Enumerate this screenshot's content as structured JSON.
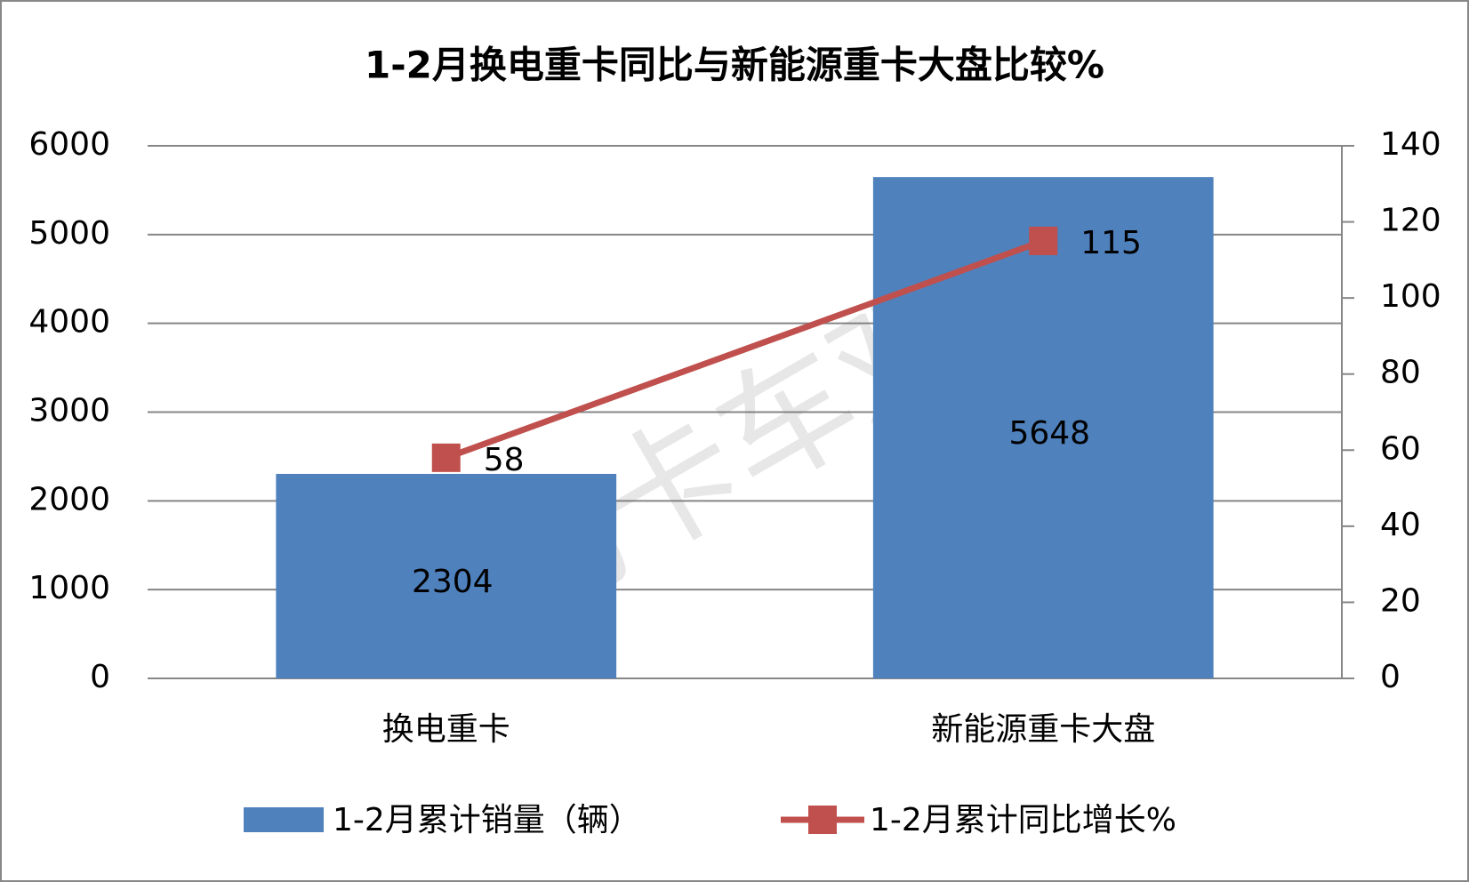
{
  "chart_data": {
    "type": "combo",
    "title": "1-2月换电重卡同比与新能源重卡大盘比较%",
    "watermark": "电动卡车观察",
    "categories": [
      "换电重卡",
      "新能源重卡大盘"
    ],
    "series": [
      {
        "name": "1-2月累计销量（辆）",
        "color": "#4f81bd",
        "values": [
          2304,
          5648
        ]
      },
      {
        "name": "1-2月累计同比增长%",
        "color": "#c0504d",
        "values": [
          58,
          115
        ],
        "axis": "y2"
      }
    ],
    "ylim": [
      0,
      6000
    ],
    "yticks": [
      0,
      1000,
      2000,
      3000,
      4000,
      5000,
      6000
    ],
    "y2lim": [
      0,
      140
    ],
    "y2ticks": [
      0,
      20,
      40,
      60,
      80,
      100,
      120,
      140
    ],
    "grid": true
  }
}
